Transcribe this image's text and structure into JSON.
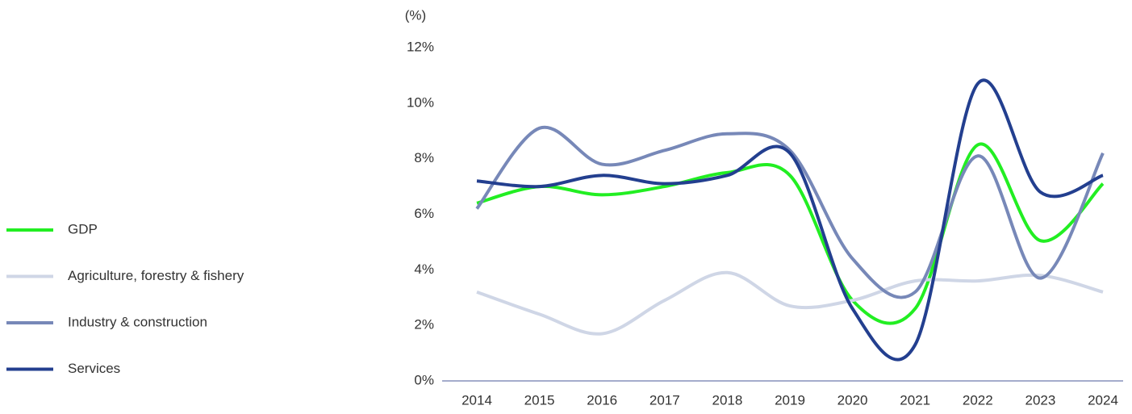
{
  "chart_data": {
    "type": "line",
    "y_axis_label": "(%)",
    "x": [
      "2014",
      "2015",
      "2016",
      "2017",
      "2018",
      "2019",
      "2020",
      "2021",
      "2022",
      "2023",
      "2024"
    ],
    "series": [
      {
        "name": "GDP",
        "color": "#22ee22",
        "values": [
          6.4,
          7.0,
          6.7,
          7.0,
          7.5,
          7.4,
          2.9,
          2.6,
          8.5,
          5.05,
          7.1
        ]
      },
      {
        "name": "Agriculture, forestry & fishery",
        "color": "#cfd6e6",
        "values": [
          3.2,
          2.4,
          1.7,
          2.9,
          3.9,
          2.7,
          2.9,
          3.6,
          3.6,
          3.8,
          3.2
        ]
      },
      {
        "name": "Industry & construction",
        "color": "#7788b8",
        "values": [
          6.2,
          9.1,
          7.8,
          8.3,
          8.9,
          8.3,
          4.4,
          3.2,
          8.1,
          3.7,
          8.2
        ]
      },
      {
        "name": "Services",
        "color": "#233f8f",
        "values": [
          7.2,
          7.0,
          7.4,
          7.1,
          7.4,
          8.2,
          2.6,
          1.3,
          10.7,
          6.8,
          7.4
        ]
      }
    ],
    "ylim": [
      0,
      12
    ],
    "yticks": [
      {
        "value": 0,
        "label": "0%"
      },
      {
        "value": 2,
        "label": "2%"
      },
      {
        "value": 4,
        "label": "4%"
      },
      {
        "value": 6,
        "label": "6%"
      },
      {
        "value": 8,
        "label": "8%"
      },
      {
        "value": 10,
        "label": "10%"
      },
      {
        "value": 12,
        "label": "12%"
      }
    ],
    "grid": false,
    "legend": "left"
  }
}
